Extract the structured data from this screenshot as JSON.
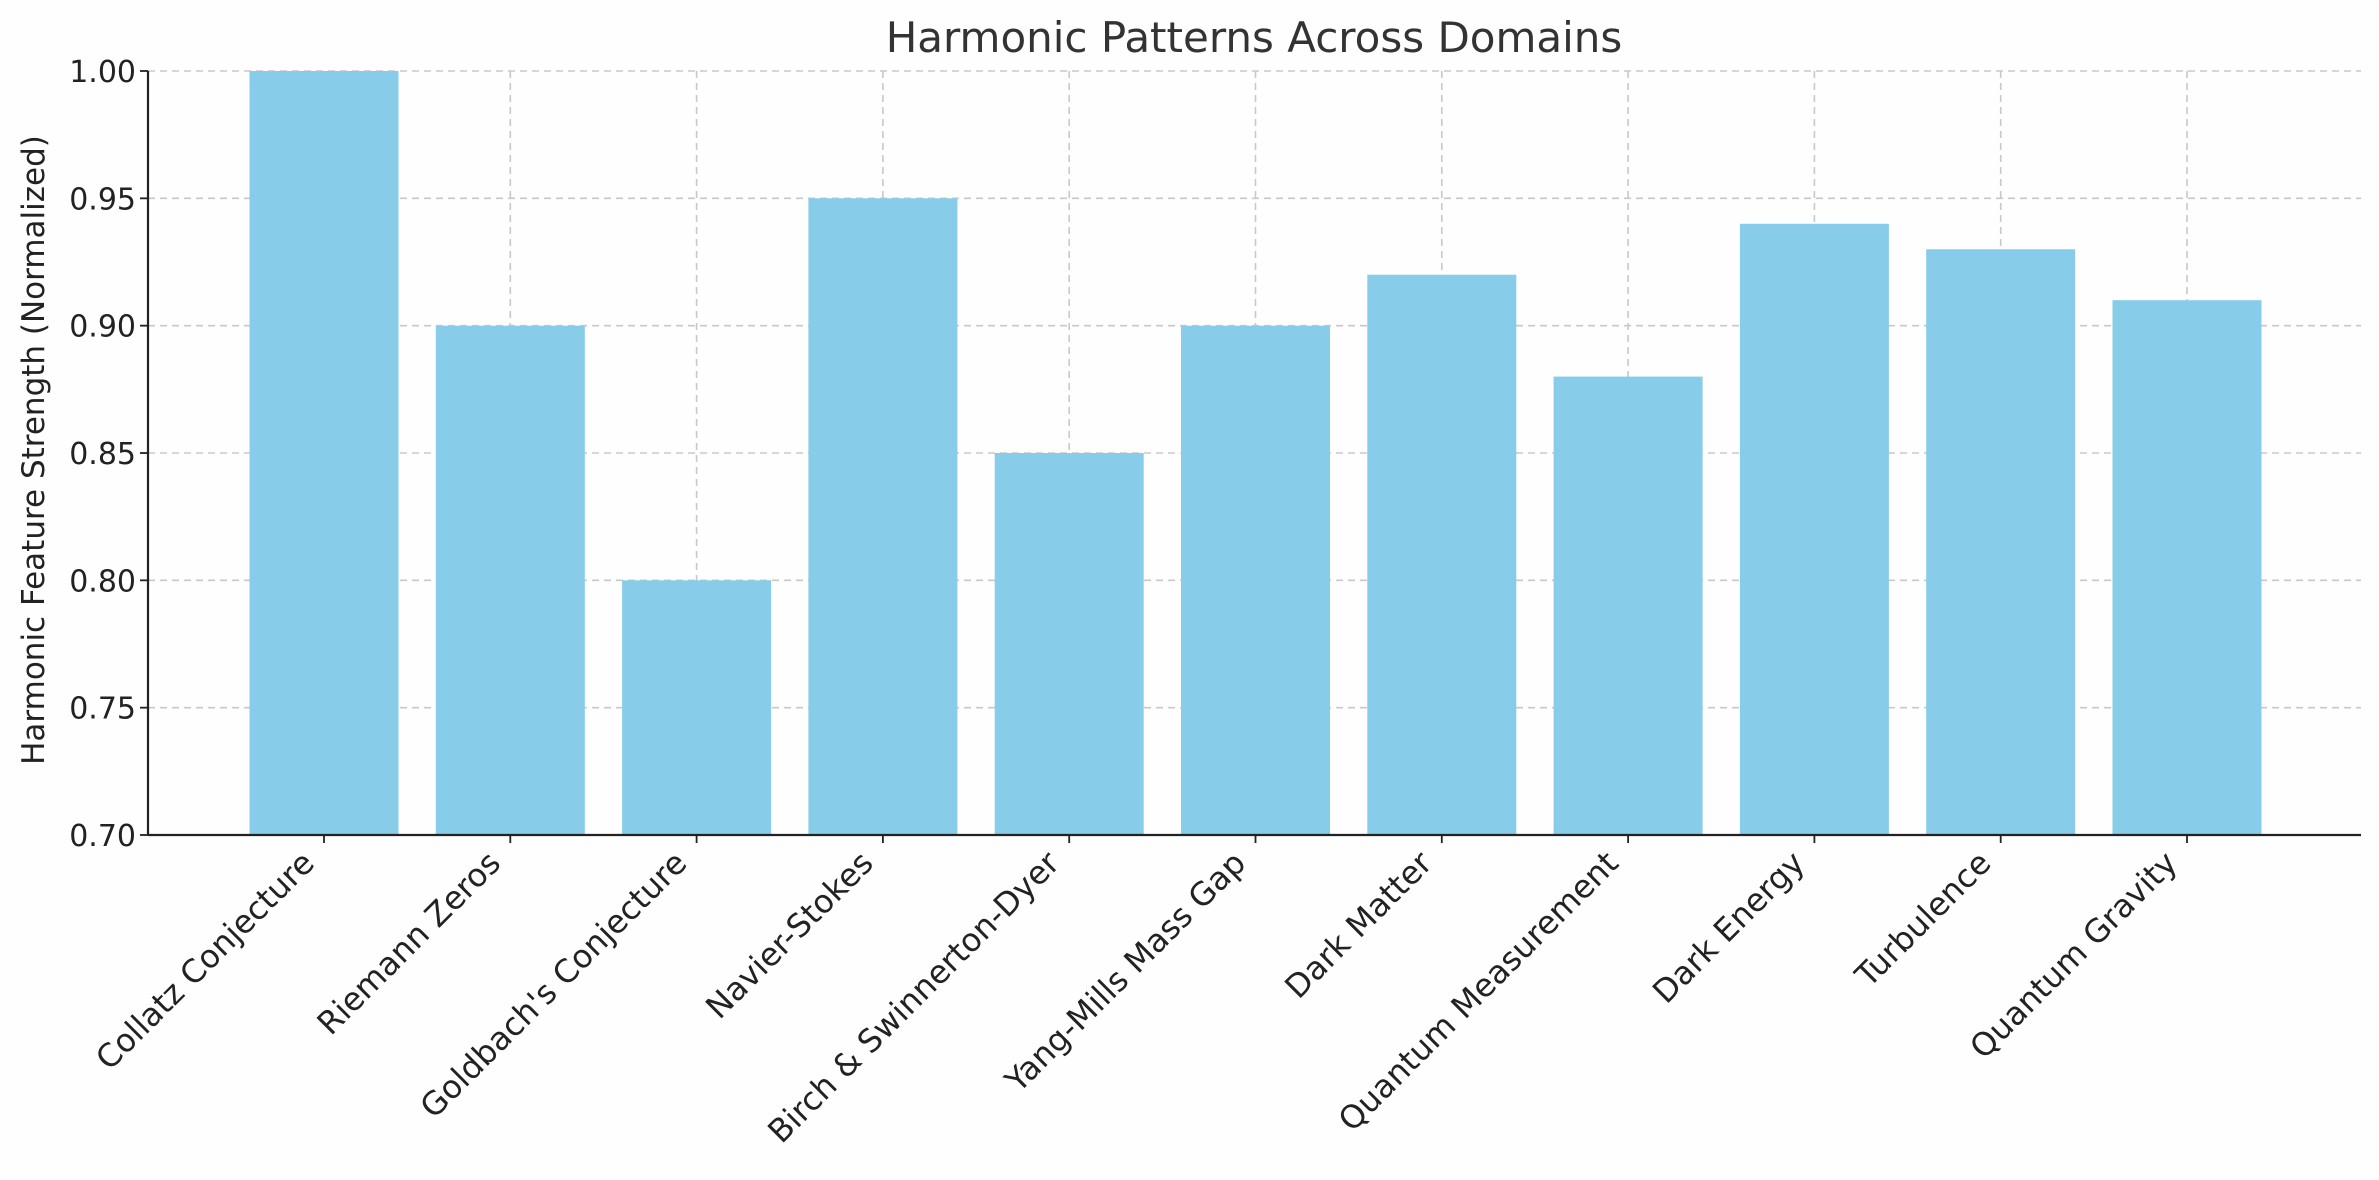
{
  "chart_data": {
    "type": "bar",
    "title": "Harmonic Patterns Across Domains",
    "xlabel": "",
    "ylabel": "Harmonic Feature Strength (Normalized)",
    "categories": [
      "Collatz Conjecture",
      "Riemann Zeros",
      "Goldbach's Conjecture",
      "Navier-Stokes",
      "Birch & Swinnerton-Dyer",
      "Yang-Mills Mass Gap",
      "Dark Matter",
      "Quantum Measurement",
      "Dark Energy",
      "Turbulence",
      "Quantum Gravity"
    ],
    "values": [
      1.0,
      0.9,
      0.8,
      0.95,
      0.85,
      0.9,
      0.92,
      0.88,
      0.94,
      0.93,
      0.91
    ],
    "ylim": [
      0.7,
      1.0
    ],
    "yticks": [
      "0.70",
      "0.75",
      "0.80",
      "0.85",
      "0.90",
      "0.95",
      "1.00"
    ],
    "grid": true,
    "bar_color": "#87CCE8"
  }
}
